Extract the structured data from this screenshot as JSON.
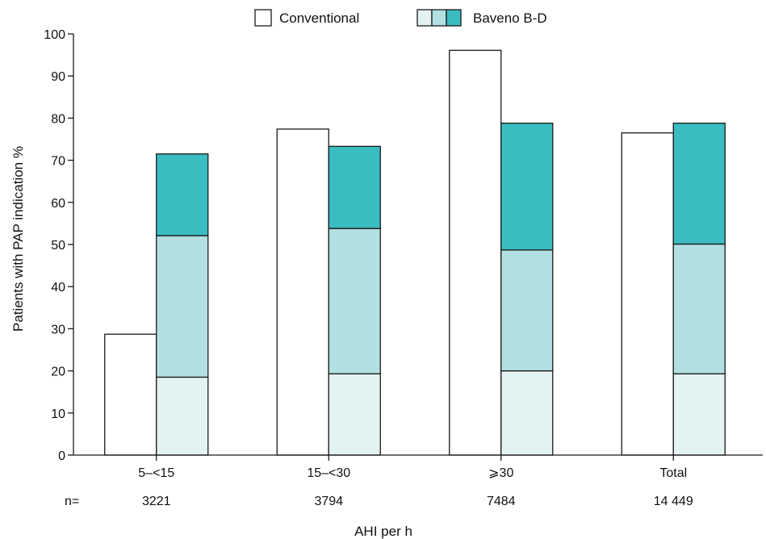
{
  "chart_data": {
    "type": "bar",
    "categories": [
      "5–<15",
      "15–<30",
      "⩾30",
      "Total"
    ],
    "n_label": "n=",
    "n_values": [
      "3221",
      "3794",
      "7484",
      "14 449"
    ],
    "xlabel": "AHI per h",
    "ylabel": "Patients with PAP indication %",
    "ylim": [
      0,
      100
    ],
    "yticks": [
      0,
      10,
      20,
      30,
      40,
      50,
      60,
      70,
      80,
      90,
      100
    ],
    "legend_position": "top",
    "series": [
      {
        "name": "Conventional",
        "values": [
          28.7,
          77.4,
          96.1,
          76.5
        ]
      }
    ],
    "stacked_series_name": "Baveno B-D",
    "stacked_segments": [
      {
        "values": [
          18.5,
          19.3,
          20.0,
          19.3
        ]
      },
      {
        "values": [
          33.6,
          34.5,
          28.7,
          30.8
        ]
      },
      {
        "values": [
          19.4,
          19.5,
          30.1,
          28.7
        ]
      }
    ],
    "colors": {
      "conventional": "#ffffff",
      "baveno": [
        "#e3f3f2",
        "#b2e0e2",
        "#3bbcc1"
      ],
      "stroke": "#1a1a1a"
    }
  }
}
